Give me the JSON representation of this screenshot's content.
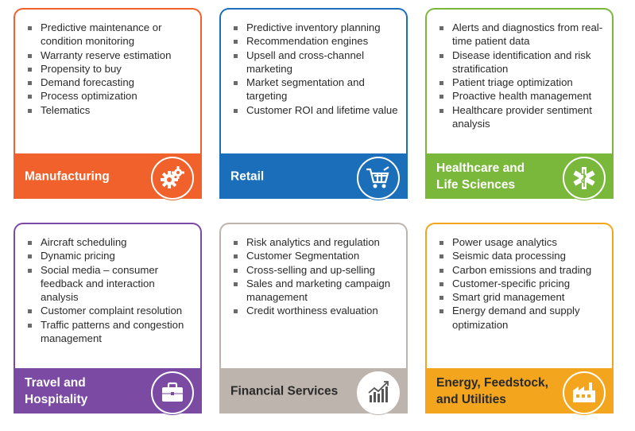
{
  "cards": [
    {
      "title_lines": [
        "Manufacturing"
      ],
      "color": "#f0612b",
      "items": [
        "Predictive maintenance or condition monitoring",
        "Warranty reserve estimation",
        "Propensity to buy",
        "Demand forecasting",
        "Process optimization",
        "Telematics"
      ],
      "icon": "gears-icon"
    },
    {
      "title_lines": [
        "Retail"
      ],
      "color": "#1b6fba",
      "items": [
        "Predictive inventory planning",
        "Recommendation engines",
        "Upsell and cross-channel marketing",
        "Market segmentation and targeting",
        "Customer ROI and lifetime value"
      ],
      "icon": "shopping-cart-icon"
    },
    {
      "title_lines": [
        "Healthcare and",
        "Life Sciences"
      ],
      "color": "#7ab83c",
      "items": [
        "Alerts and diagnostics from real-time patient data",
        "Disease identification and risk stratification",
        "Patient triage optimization",
        "Proactive health management",
        "Healthcare provider sentiment analysis"
      ],
      "icon": "medical-caduceus-icon"
    },
    {
      "title_lines": [
        "Travel and",
        "Hospitality"
      ],
      "color": "#7b4aa2",
      "items": [
        "Aircraft scheduling",
        "Dynamic pricing",
        "Social media – consumer feedback and interaction analysis",
        "Customer complaint resolution",
        "Traffic patterns and congestion management"
      ],
      "icon": "briefcase-icon"
    },
    {
      "title_lines": [
        "Financial  Services"
      ],
      "color": "#bdb5ad",
      "items": [
        "Risk analytics and regulation",
        "Customer Segmentation",
        "Cross-selling and up-selling",
        "Sales and marketing campaign management",
        "Credit worthiness evaluation"
      ],
      "icon": "bar-chart-icon"
    },
    {
      "title_lines": [
        "Energy, Feedstock,",
        "and Utilities"
      ],
      "color": "#f3a51d",
      "items": [
        "Power usage analytics",
        "Seismic data processing",
        "Carbon emissions and trading",
        "Customer-specific pricing",
        "Smart grid management",
        "Energy demand and supply optimization"
      ],
      "icon": "factory-icon"
    }
  ]
}
